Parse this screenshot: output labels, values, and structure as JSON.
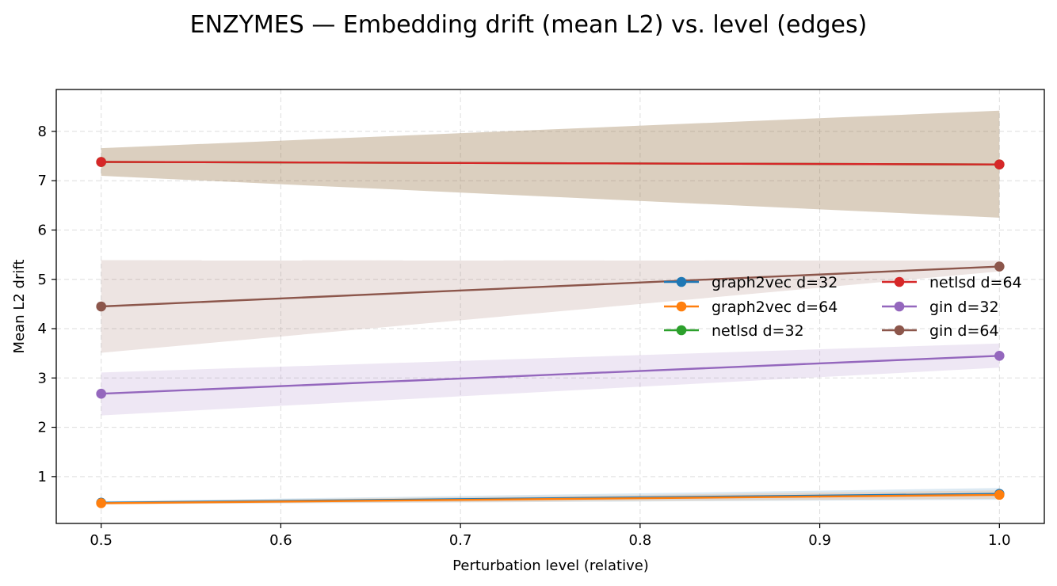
{
  "chart_data": {
    "type": "line",
    "title": "ENZYMES — Embedding drift (mean L2) vs. level (edges)",
    "xlabel": "Perturbation level (relative)",
    "ylabel": "Mean L2 drift",
    "xlim": [
      0.475,
      1.025
    ],
    "ylim": [
      0.05,
      8.85
    ],
    "xticks": [
      0.5,
      0.6,
      0.7,
      0.8,
      0.9,
      1.0
    ],
    "xtick_labels": [
      "0.5",
      "0.6",
      "0.7",
      "0.8",
      "0.9",
      "1.0"
    ],
    "yticks": [
      1,
      2,
      3,
      4,
      5,
      6,
      7,
      8
    ],
    "ytick_labels": [
      "1",
      "2",
      "3",
      "4",
      "5",
      "6",
      "7",
      "8"
    ],
    "grid": true,
    "legend_position": "center-right",
    "legend_columns": 2,
    "x": [
      0.5,
      1.0
    ],
    "series": [
      {
        "name": "graph2vec d=32",
        "color": "#1f77b4",
        "values": [
          0.47,
          0.65
        ],
        "band_lower": [
          0.44,
          0.53
        ],
        "band_upper": [
          0.5,
          0.77
        ]
      },
      {
        "name": "graph2vec d=64",
        "color": "#ff7f0e",
        "values": [
          0.46,
          0.63
        ],
        "band_lower": [
          0.44,
          0.55
        ],
        "band_upper": [
          0.49,
          0.72
        ]
      },
      {
        "name": "netlsd d=32",
        "color": "#2ca02c",
        "values": [
          7.38,
          7.33
        ],
        "band_lower": [
          7.1,
          6.25
        ],
        "band_upper": [
          7.66,
          8.42
        ]
      },
      {
        "name": "netlsd d=64",
        "color": "#d62728",
        "values": [
          7.38,
          7.33
        ],
        "band_lower": [
          7.1,
          6.25
        ],
        "band_upper": [
          7.66,
          8.42
        ]
      },
      {
        "name": "gin d=32",
        "color": "#9467bd",
        "values": [
          2.68,
          3.45
        ],
        "band_lower": [
          2.24,
          3.21
        ],
        "band_upper": [
          3.11,
          3.7
        ]
      },
      {
        "name": "gin d=64",
        "color": "#8c564b",
        "values": [
          4.45,
          5.26
        ],
        "band_lower": [
          3.51,
          5.16
        ],
        "band_upper": [
          5.39,
          5.38
        ]
      }
    ]
  }
}
